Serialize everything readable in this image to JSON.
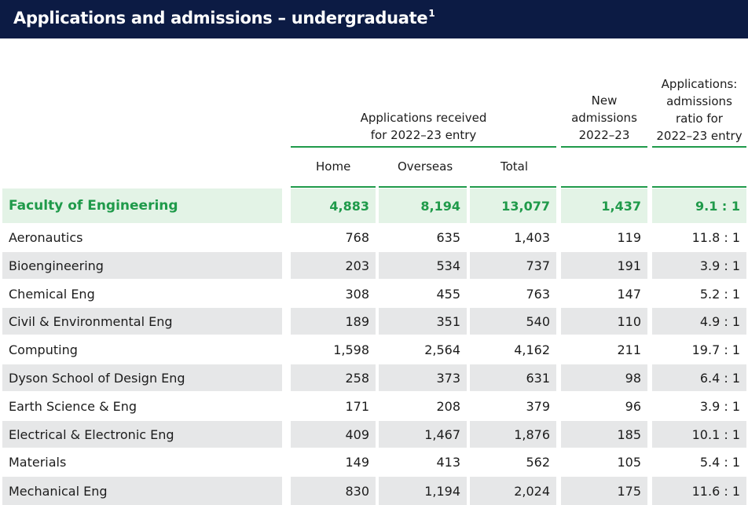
{
  "title": "Applications and admissions – undergraduate",
  "title_footnote": "1",
  "headers": {
    "applications_line1": "Applications received",
    "applications_line2": "for 2022–23 entry",
    "new_line1": "New",
    "new_line2": "admissions",
    "new_line3": "2022–23",
    "ratio_line1": "Applications:",
    "ratio_line2": "admissions",
    "ratio_line3": "ratio for",
    "ratio_line4": "2022–23 entry",
    "home": "Home",
    "overseas": "Overseas",
    "total": "Total"
  },
  "colors": {
    "header_bg": "#0c1b44",
    "accent_green": "#1f9a4a",
    "faculty_bg": "#e3f3e6",
    "shade": "#e6e7e8"
  },
  "rows": [
    {
      "name": "Faculty of Engineering",
      "home": "4,883",
      "overseas": "8,194",
      "total": "13,077",
      "new": "1,437",
      "ratio": "9.1 : 1"
    },
    {
      "name": "Aeronautics",
      "home": "768",
      "overseas": "635",
      "total": "1,403",
      "new": "119",
      "ratio": "11.8 : 1"
    },
    {
      "name": "Bioengineering",
      "home": "203",
      "overseas": "534",
      "total": "737",
      "new": "191",
      "ratio": "3.9 : 1"
    },
    {
      "name": "Chemical Eng",
      "home": "308",
      "overseas": "455",
      "total": "763",
      "new": "147",
      "ratio": "5.2 : 1"
    },
    {
      "name": "Civil & Environmental Eng",
      "home": "189",
      "overseas": "351",
      "total": "540",
      "new": "110",
      "ratio": "4.9 : 1"
    },
    {
      "name": "Computing",
      "home": "1,598",
      "overseas": "2,564",
      "total": "4,162",
      "new": "211",
      "ratio": "19.7 : 1"
    },
    {
      "name": "Dyson School of Design Eng",
      "home": "258",
      "overseas": "373",
      "total": "631",
      "new": "98",
      "ratio": "6.4 : 1"
    },
    {
      "name": "Earth Science & Eng",
      "home": "171",
      "overseas": "208",
      "total": "379",
      "new": "96",
      "ratio": "3.9 : 1"
    },
    {
      "name": "Electrical & Electronic Eng",
      "home": "409",
      "overseas": "1,467",
      "total": "1,876",
      "new": "185",
      "ratio": "10.1 : 1"
    },
    {
      "name": "Materials",
      "home": "149",
      "overseas": "413",
      "total": "562",
      "new": "105",
      "ratio": "5.4 : 1"
    },
    {
      "name": "Mechanical Eng",
      "home": "830",
      "overseas": "1,194",
      "total": "2,024",
      "new": "175",
      "ratio": "11.6 : 1"
    }
  ]
}
